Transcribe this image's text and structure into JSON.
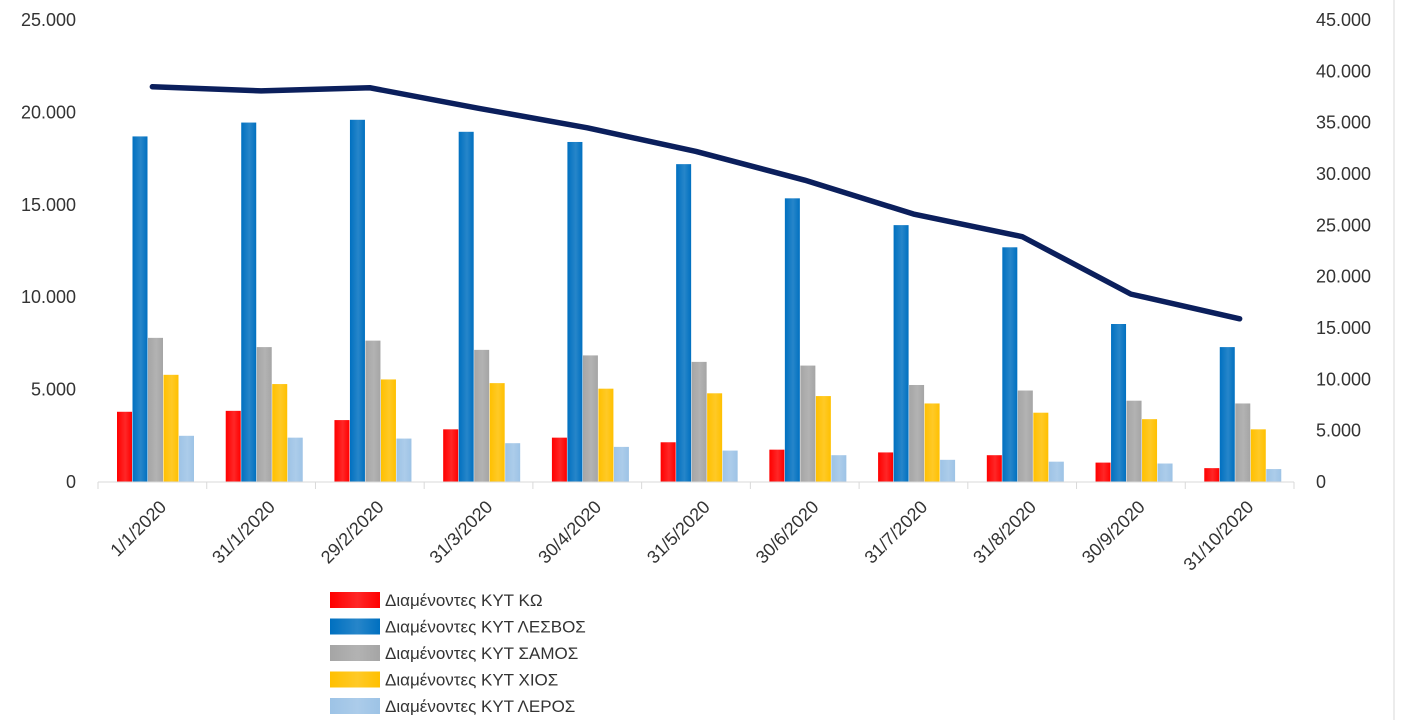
{
  "chart_data": {
    "type": "bar",
    "categories": [
      "1/1/2020",
      "31/1/2020",
      "29/2/2020",
      "31/3/2020",
      "30/4/2020",
      "31/5/2020",
      "30/6/2020",
      "31/7/2020",
      "31/8/2020",
      "30/9/2020",
      "31/10/2020"
    ],
    "series": [
      {
        "name": "Διαμένοντες ΚΥΤ ΚΩ",
        "color": "#ff0000",
        "axis": "left",
        "values": [
          3800,
          3850,
          3350,
          2850,
          2400,
          2150,
          1750,
          1600,
          1450,
          1050,
          750
        ]
      },
      {
        "name": "Διαμένοντες ΚΥΤ ΛΕΣΒΟΣ",
        "color": "#0070c0",
        "axis": "left",
        "values": [
          18700,
          19450,
          19600,
          18950,
          18400,
          17200,
          15350,
          13900,
          12700,
          8550,
          7300
        ]
      },
      {
        "name": "Διαμένοντες ΚΥΤ ΣΑΜΟΣ",
        "color": "#a5a5a5",
        "axis": "left",
        "values": [
          7800,
          7300,
          7650,
          7150,
          6850,
          6500,
          6300,
          5250,
          4950,
          4400,
          4250
        ]
      },
      {
        "name": "Διαμένοντες ΚΥΤ ΧΙΟΣ",
        "color": "#ffc000",
        "axis": "left",
        "values": [
          5800,
          5300,
          5550,
          5350,
          5050,
          4800,
          4650,
          4250,
          3750,
          3400,
          2850
        ]
      },
      {
        "name": "Διαμένοντες ΚΥΤ ΛΕΡΟΣ",
        "color": "#9dc3e6",
        "axis": "left",
        "values": [
          2500,
          2400,
          2350,
          2100,
          1900,
          1700,
          1450,
          1200,
          1100,
          1000,
          700
        ]
      },
      {
        "type": "line",
        "color": "#0b1f5c",
        "axis": "right",
        "values": [
          38500,
          38100,
          38400,
          36400,
          34500,
          32200,
          29400,
          26100,
          23900,
          18300,
          15900
        ]
      }
    ],
    "y_left": {
      "min": 0,
      "max": 25000,
      "ticks": [
        "0",
        "5.000",
        "10.000",
        "15.000",
        "20.000",
        "25.000"
      ]
    },
    "y_right": {
      "min": 0,
      "max": 45000,
      "ticks": [
        "0",
        "5.000",
        "10.000",
        "15.000",
        "20.000",
        "25.000",
        "30.000",
        "35.000",
        "40.000",
        "45.000"
      ]
    },
    "title": "",
    "xlabel": "",
    "ylabel": "",
    "grid": false,
    "legend": "bottom-center"
  }
}
